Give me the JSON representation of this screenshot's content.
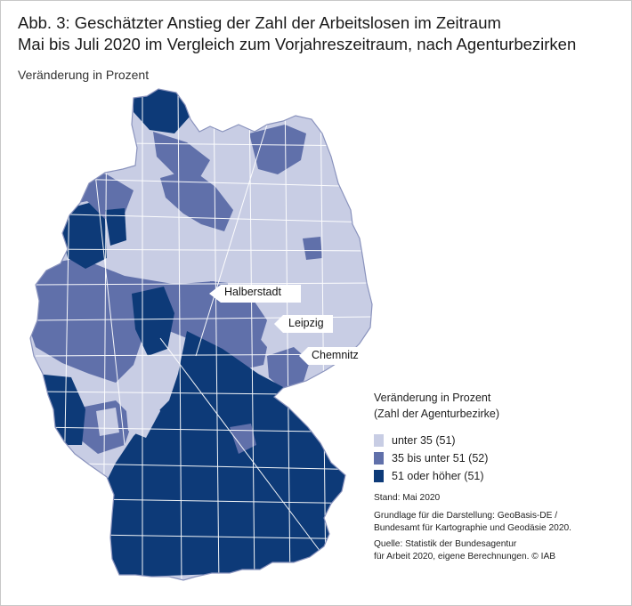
{
  "title_line1": "Abb. 3: Geschätzter Anstieg der Zahl der Arbeitslosen im Zeitraum",
  "title_line2": "Mai bis Juli 2020 im Vergleich zum Vorjahreszeitraum, nach Agenturbezirken",
  "subtitle": "Veränderung in Prozent",
  "legend": {
    "title_line1": "Veränderung in Prozent",
    "title_line2": "(Zahl der Agenturbezirke)",
    "items": [
      {
        "label": "unter 35 (51)",
        "color": "#c8cde4"
      },
      {
        "label": "35 bis unter 51 (52)",
        "color": "#6070aa"
      },
      {
        "label": "51 oder höher (51)",
        "color": "#0d3a78"
      }
    ]
  },
  "cities": [
    {
      "name": "Halberstadt"
    },
    {
      "name": "Leipzig"
    },
    {
      "name": "Chemnitz"
    }
  ],
  "notes": {
    "stand": "Stand: Mai 2020",
    "grundlage_line1": "Grundlage für die Darstellung: GeoBasis-DE /",
    "grundlage_line2": "Bundesamt für Kartographie und Geodäsie 2020.",
    "quelle_line1": "Quelle: Statistik der Bundesagentur",
    "quelle_line2": "für Arbeit 2020, eigene Berechnungen. © IAB"
  },
  "colors": {
    "low": "#c8cde4",
    "mid": "#6070aa",
    "high": "#0d3a78",
    "border": "#ffffff"
  }
}
